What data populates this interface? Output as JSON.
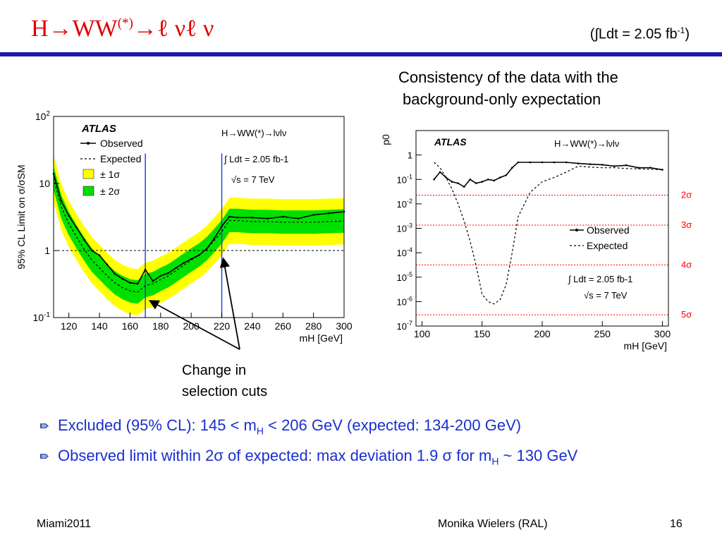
{
  "slide": {
    "title_main": "H→WW",
    "title_sup": "(*)",
    "title_tail": "→ℓ νℓ ν",
    "lumi_main": "(∫Ldt = 2.05 fb",
    "lumi_sup": "-1",
    "lumi_close": ")",
    "consistency_line1": "Consistency of the data with the",
    "consistency_line2": "background-only expectation",
    "change_line1": "Change in",
    "change_line2": "selection cuts",
    "bullet1_pre": "Excluded (95% CL): 145 < m",
    "bullet1_sub": "H",
    "bullet1_post": " < 206 GeV (expected: 134-200 GeV)",
    "bullet2_pre": "Observed limit within 2σ of expected: max deviation 1.9 σ for m",
    "bullet2_sub": "H",
    "bullet2_post": " ~ 130 GeV",
    "footer_left": "Miami2011",
    "footer_center": "Monika Wielers (RAL)",
    "footer_right": "16"
  },
  "colors": {
    "title": "#e00000",
    "rule": "#1a1aa6",
    "bullet_text": "#1a2fd0",
    "band1": "#00e000",
    "band2": "#ffff00",
    "cut_lines": "#1f36d8",
    "sigma_lines": "#ff0000"
  },
  "chart_data": [
    {
      "type": "line",
      "experiment": "ATLAS",
      "process": "H→WW(*)→lνlν",
      "lumi": "∫ Ldt = 2.05 fb-1",
      "energy": "√s = 7 TeV",
      "ylabel": "95% CL Limit on σ/σSM",
      "xlabel": "mH [GeV]",
      "yscale": "log",
      "ylim": [
        0.1,
        100
      ],
      "xlim": [
        110,
        300
      ],
      "xticks": [
        "120",
        "140",
        "160",
        "180",
        "200",
        "220",
        "240",
        "260",
        "280",
        "300"
      ],
      "yticks": [
        "10-1",
        "1",
        "10",
        "102"
      ],
      "legend": [
        "Observed",
        "Expected",
        "± 1σ",
        "± 2σ"
      ],
      "reference_line": 1,
      "selection_cut_changes": [
        170,
        220
      ],
      "x": [
        110,
        115,
        120,
        125,
        130,
        135,
        140,
        145,
        150,
        155,
        160,
        165,
        170,
        175,
        180,
        185,
        190,
        195,
        200,
        205,
        210,
        215,
        220,
        225,
        230,
        240,
        250,
        260,
        270,
        280,
        290,
        300
      ],
      "series": [
        {
          "name": "Observed",
          "values": [
            14,
            5.5,
            3.3,
            2.2,
            1.45,
            1.0,
            0.85,
            0.62,
            0.45,
            0.38,
            0.33,
            0.32,
            0.52,
            0.35,
            0.42,
            0.46,
            0.55,
            0.65,
            0.75,
            0.85,
            1.05,
            1.5,
            2.3,
            3.2,
            3.1,
            3.1,
            3.0,
            3.2,
            3.0,
            3.4,
            3.6,
            3.8
          ]
        },
        {
          "name": "Expected",
          "values": [
            12,
            4.5,
            2.5,
            1.6,
            1.05,
            0.72,
            0.55,
            0.42,
            0.33,
            0.28,
            0.25,
            0.24,
            0.3,
            0.32,
            0.37,
            0.42,
            0.5,
            0.6,
            0.72,
            0.85,
            1.05,
            1.4,
            1.9,
            2.8,
            2.8,
            2.7,
            2.7,
            2.65,
            2.65,
            2.65,
            2.7,
            2.75
          ]
        }
      ],
      "band_2sigma_factor": [
        0.45,
        2.2
      ],
      "band_1sigma_factor": [
        0.67,
        1.5
      ]
    },
    {
      "type": "line",
      "experiment": "ATLAS",
      "process": "H→WW(*)→lνlν",
      "lumi": "∫ Ldt = 2.05 fb-1",
      "energy": "√s = 7 TeV",
      "ylabel": "p0",
      "xlabel": "mH [GeV]",
      "yscale": "log",
      "ylim": [
        1e-07,
        10
      ],
      "xlim": [
        95,
        305
      ],
      "xticks": [
        "100",
        "150",
        "200",
        "250",
        "300"
      ],
      "yticks": [
        "1",
        "10-1",
        "10-2",
        "10-3",
        "10-4",
        "10-5",
        "10-6",
        "10-7"
      ],
      "legend": [
        "Observed",
        "Expected"
      ],
      "sigma_lines": [
        {
          "label": "2σ",
          "p": 0.0228
        },
        {
          "label": "3σ",
          "p": 0.00135
        },
        {
          "label": "4σ",
          "p": 3.17e-05
        },
        {
          "label": "5σ",
          "p": 2.87e-07
        }
      ],
      "x": [
        110,
        115,
        120,
        125,
        130,
        135,
        140,
        145,
        150,
        155,
        160,
        165,
        170,
        175,
        180,
        190,
        200,
        210,
        220,
        230,
        240,
        250,
        260,
        270,
        280,
        290,
        300
      ],
      "series": [
        {
          "name": "Observed",
          "values": [
            0.1,
            0.2,
            0.12,
            0.08,
            0.07,
            0.05,
            0.1,
            0.07,
            0.08,
            0.1,
            0.09,
            0.12,
            0.15,
            0.3,
            0.5,
            0.5,
            0.5,
            0.5,
            0.5,
            0.45,
            0.42,
            0.4,
            0.35,
            0.38,
            0.3,
            0.3,
            0.25
          ]
        },
        {
          "name": "Expected",
          "values": [
            0.5,
            0.3,
            0.12,
            0.04,
            0.01,
            0.002,
            0.0003,
            3e-05,
            2e-06,
            1e-06,
            8e-07,
            1.2e-06,
            5e-06,
            0.0001,
            0.003,
            0.03,
            0.08,
            0.12,
            0.2,
            0.35,
            0.32,
            0.3,
            0.3,
            0.28,
            0.27,
            0.26,
            0.25
          ]
        }
      ]
    }
  ]
}
